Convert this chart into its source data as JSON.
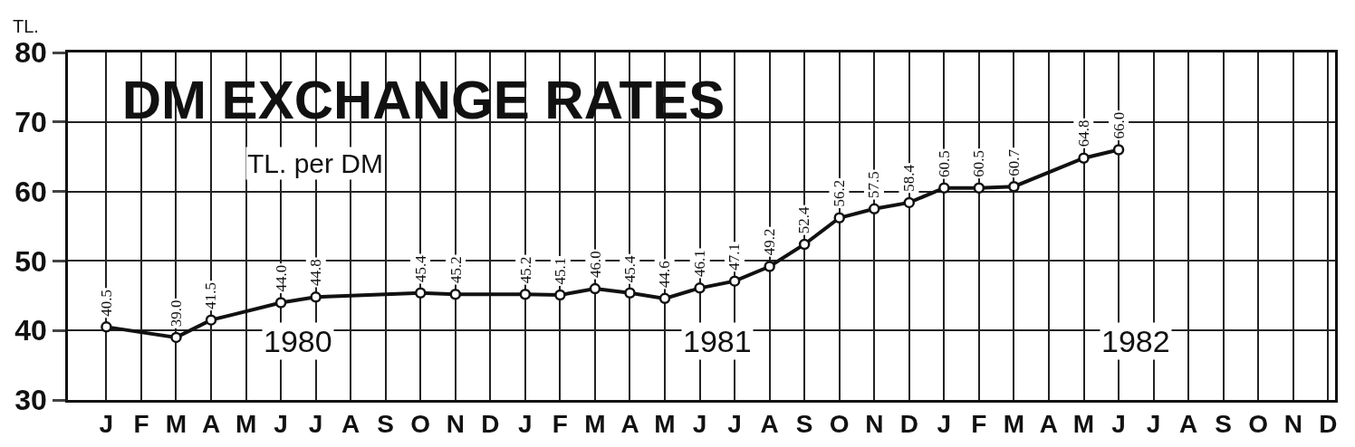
{
  "chart_data": {
    "type": "line",
    "title": "DM EXCHANGE RATES",
    "subtitle": "TL. per DM",
    "ylabel": "TL.",
    "categories": [
      "J",
      "F",
      "M",
      "A",
      "M",
      "J",
      "J",
      "A",
      "S",
      "O",
      "N",
      "D",
      "J",
      "F",
      "M",
      "A",
      "M",
      "J",
      "J",
      "A",
      "S",
      "O",
      "N",
      "D",
      "J",
      "F",
      "M",
      "A",
      "M",
      "J",
      "J",
      "A",
      "S",
      "O",
      "N",
      "D"
    ],
    "series": [
      {
        "color": "#111111",
        "values": [
          40.5,
          null,
          39.0,
          41.5,
          null,
          44.0,
          44.8,
          null,
          null,
          45.4,
          45.2,
          null,
          45.2,
          45.1,
          46.0,
          45.4,
          44.6,
          46.1,
          47.1,
          49.2,
          52.4,
          56.2,
          57.5,
          58.4,
          60.5,
          60.5,
          60.7,
          null,
          64.8,
          66.0,
          null,
          null,
          null,
          null,
          null,
          null
        ],
        "value_labels": [
          "40.5",
          null,
          "39.0",
          "41.5",
          null,
          "44.0",
          "44.8",
          null,
          null,
          "45.4",
          "45.2",
          null,
          "45.2",
          "45.1",
          "46.0",
          "45.4",
          "44.6",
          "46.1",
          "47.1",
          "49.2",
          "52.4",
          "56.2",
          "57.5",
          "58.4",
          "60.5",
          "60.5",
          "60.7",
          null,
          "64.8",
          "66.0",
          null,
          null,
          null,
          null,
          null,
          null
        ]
      }
    ],
    "annotations": [
      "1980",
      "1981",
      "1982"
    ],
    "ylim": [
      30,
      80
    ],
    "yticks": [
      30,
      40,
      50,
      60,
      70,
      80
    ],
    "grid": true,
    "marker": "circle",
    "line_style": "solid",
    "legend": false
  }
}
